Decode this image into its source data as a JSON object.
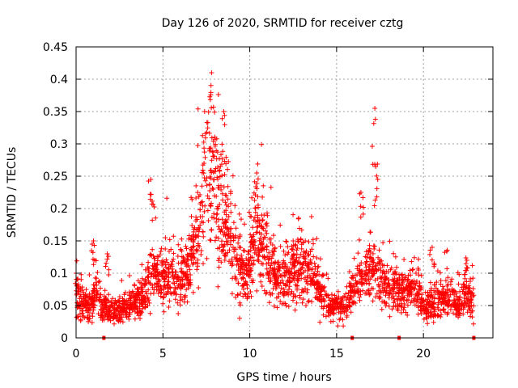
{
  "chart_data": {
    "type": "scatter",
    "title": "Day 126 of 2020, SRMTID for receiver cztg",
    "xlabel": "GPS time / hours",
    "ylabel": "SRMTID / TECUs",
    "xlim": [
      0,
      24
    ],
    "ylim": [
      0,
      0.45
    ],
    "xticks": [
      "0",
      "5",
      "10",
      "15",
      "20"
    ],
    "yticks": [
      "0",
      "0.05",
      "0.1",
      "0.15",
      "0.2",
      "0.25",
      "0.3",
      "0.35",
      "0.4",
      "0.45"
    ],
    "grid": true,
    "marker": "+",
    "color": "#ff0000",
    "profile": [
      [
        0.0,
        0.06
      ],
      [
        0.3,
        0.05
      ],
      [
        0.8,
        0.05
      ],
      [
        1.0,
        0.06
      ],
      [
        1.2,
        0.07
      ],
      [
        1.5,
        0.05
      ],
      [
        2.0,
        0.04
      ],
      [
        2.5,
        0.04
      ],
      [
        3.0,
        0.05
      ],
      [
        3.5,
        0.06
      ],
      [
        4.0,
        0.07
      ],
      [
        4.3,
        0.1
      ],
      [
        4.8,
        0.09
      ],
      [
        5.5,
        0.1
      ],
      [
        6.0,
        0.09
      ],
      [
        6.5,
        0.11
      ],
      [
        7.0,
        0.17
      ],
      [
        7.5,
        0.23
      ],
      [
        8.0,
        0.24
      ],
      [
        8.5,
        0.2
      ],
      [
        9.0,
        0.14
      ],
      [
        9.5,
        0.1
      ],
      [
        10.0,
        0.11
      ],
      [
        10.4,
        0.17
      ],
      [
        11.0,
        0.12
      ],
      [
        11.5,
        0.1
      ],
      [
        12.0,
        0.09
      ],
      [
        12.5,
        0.1
      ],
      [
        13.0,
        0.1
      ],
      [
        13.5,
        0.1
      ],
      [
        14.0,
        0.08
      ],
      [
        14.5,
        0.05
      ],
      [
        15.0,
        0.05
      ],
      [
        15.5,
        0.05
      ],
      [
        16.0,
        0.07
      ],
      [
        16.5,
        0.09
      ],
      [
        17.0,
        0.12
      ],
      [
        17.5,
        0.08
      ],
      [
        18.0,
        0.08
      ],
      [
        18.5,
        0.07
      ],
      [
        19.0,
        0.07
      ],
      [
        19.5,
        0.08
      ],
      [
        20.0,
        0.05
      ],
      [
        20.5,
        0.05
      ],
      [
        21.0,
        0.06
      ],
      [
        21.5,
        0.06
      ],
      [
        22.0,
        0.05
      ],
      [
        22.5,
        0.07
      ],
      [
        22.9,
        0.05
      ]
    ],
    "peaks": [
      [
        0.0,
        0.1
      ],
      [
        1.0,
        0.15
      ],
      [
        1.8,
        0.13
      ],
      [
        4.3,
        0.245
      ],
      [
        7.4,
        0.35
      ],
      [
        7.8,
        0.41
      ],
      [
        8.5,
        0.35
      ],
      [
        10.4,
        0.255
      ],
      [
        12.5,
        0.15
      ],
      [
        13.2,
        0.15
      ],
      [
        16.4,
        0.225
      ],
      [
        17.2,
        0.355
      ],
      [
        17.25,
        0.265
      ],
      [
        20.5,
        0.14
      ],
      [
        22.5,
        0.12
      ]
    ],
    "zero_points": [
      1.6,
      15.9,
      18.6,
      22.9
    ]
  }
}
